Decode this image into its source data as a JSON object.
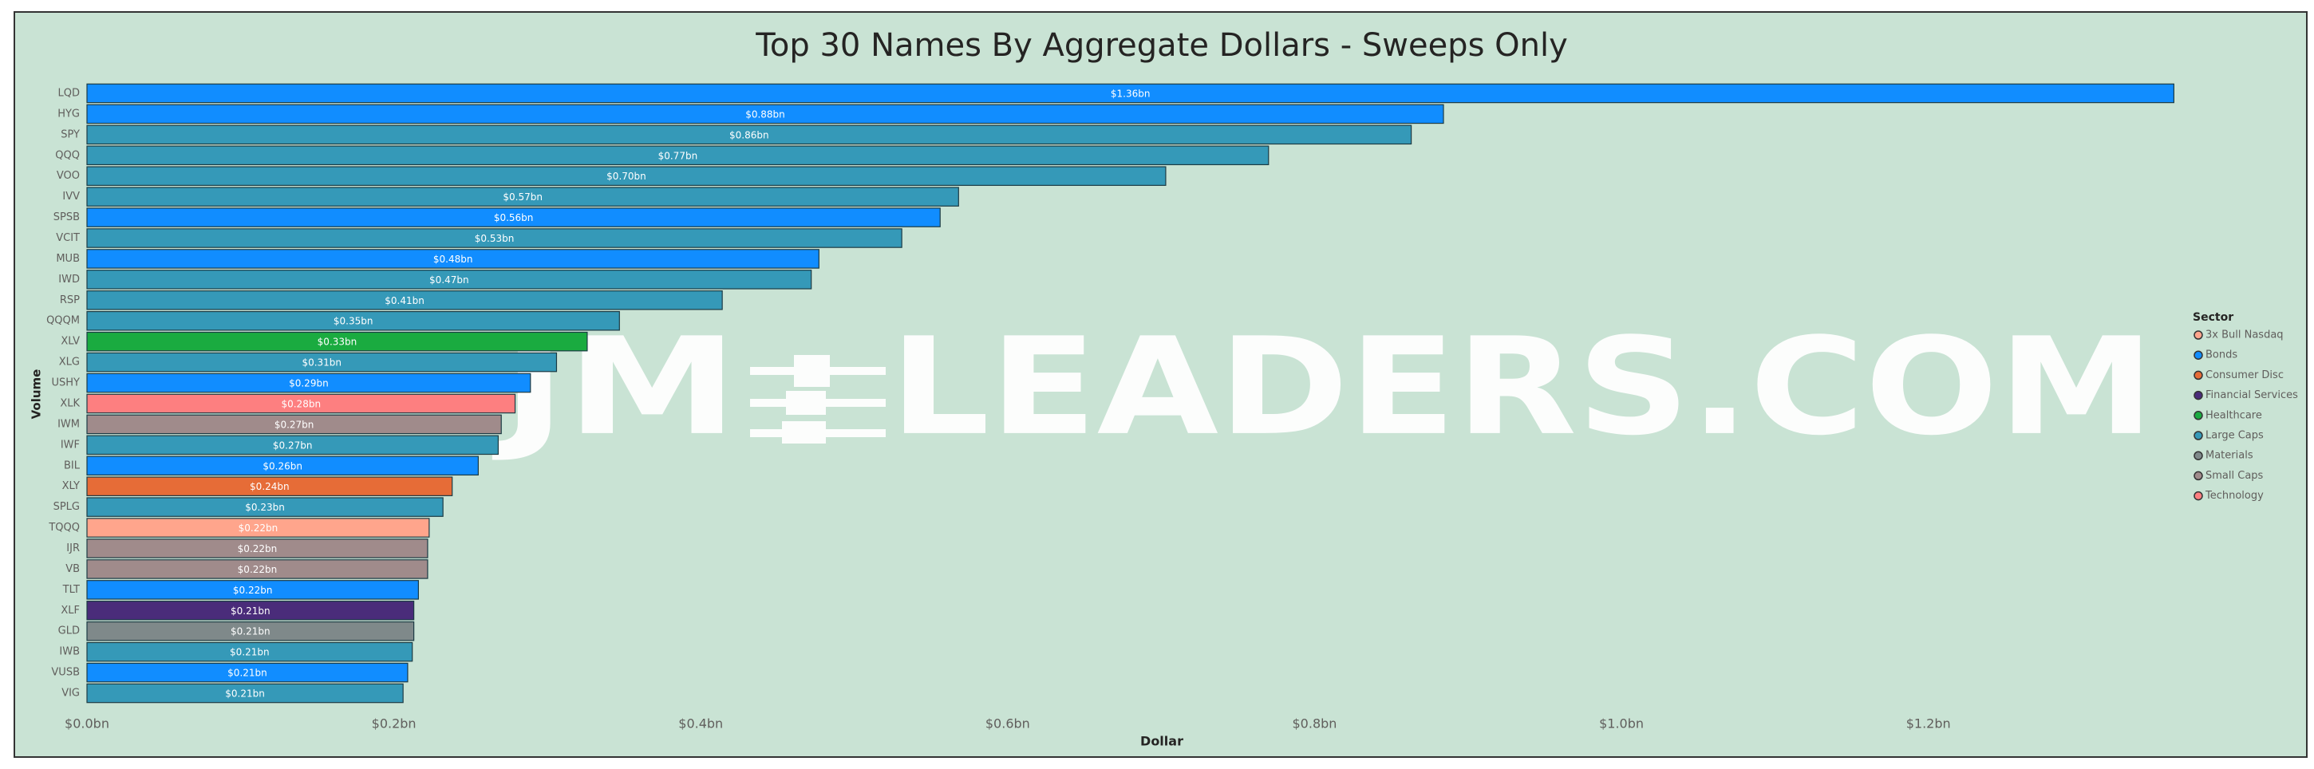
{
  "chart_data": {
    "type": "bar",
    "orientation": "horizontal",
    "title": "Top 30 Names By Aggregate Dollars - Sweeps Only",
    "xlabel": "Dollar",
    "ylabel": "Volume",
    "watermark": [
      "JM",
      "LEADERS.COM"
    ],
    "categories": [
      "LQD",
      "HYG",
      "SPY",
      "QQQ",
      "VOO",
      "IVV",
      "SPSB",
      "VCIT",
      "MUB",
      "IWD",
      "RSP",
      "QQQM",
      "XLV",
      "XLG",
      "USHY",
      "XLK",
      "IWM",
      "IWF",
      "BIL",
      "XLY",
      "SPLG",
      "TQQQ",
      "IJR",
      "VB",
      "TLT",
      "XLF",
      "GLD",
      "IWB",
      "VUSB",
      "VIG"
    ],
    "values": [
      1.36,
      0.884,
      0.863,
      0.77,
      0.703,
      0.568,
      0.556,
      0.531,
      0.477,
      0.472,
      0.414,
      0.347,
      0.326,
      0.306,
      0.289,
      0.279,
      0.27,
      0.268,
      0.255,
      0.238,
      0.232,
      0.223,
      0.222,
      0.222,
      0.216,
      0.213,
      0.213,
      0.212,
      0.209,
      0.206
    ],
    "value_labels": [
      "$1.36bn",
      "$0.88bn",
      "$0.86bn",
      "$0.77bn",
      "$0.70bn",
      "$0.57bn",
      "$0.56bn",
      "$0.53bn",
      "$0.48bn",
      "$0.47bn",
      "$0.41bn",
      "$0.35bn",
      "$0.33bn",
      "$0.31bn",
      "$0.29bn",
      "$0.28bn",
      "$0.27bn",
      "$0.27bn",
      "$0.26bn",
      "$0.24bn",
      "$0.23bn",
      "$0.22bn",
      "$0.22bn",
      "$0.22bn",
      "$0.22bn",
      "$0.21bn",
      "$0.21bn",
      "$0.21bn",
      "$0.21bn",
      "$0.21bn"
    ],
    "colors": [
      "#118dff",
      "#118dff",
      "#3599b8",
      "#3599b8",
      "#3599b8",
      "#3599b8",
      "#118dff",
      "#3599b8",
      "#118dff",
      "#3599b8",
      "#3599b8",
      "#3599b8",
      "#1aab40",
      "#3599b8",
      "#118dff",
      "#fd7f80",
      "#a08b8b",
      "#3599b8",
      "#118dff",
      "#e66c37",
      "#3599b8",
      "#ffa58c",
      "#a08b8b",
      "#a08b8b",
      "#118dff",
      "#4a2c7a",
      "#7f898a",
      "#3599b8",
      "#118dff",
      "#3599b8"
    ],
    "xlim": [
      0,
      1.365
    ],
    "xticks": [
      {
        "value": 0,
        "label": "$0.0bn"
      },
      {
        "value": 0.2,
        "label": "$0.2bn"
      },
      {
        "value": 0.4,
        "label": "$0.4bn"
      },
      {
        "value": 0.6,
        "label": "$0.6bn"
      },
      {
        "value": 0.8,
        "label": "$0.8bn"
      },
      {
        "value": 1.0,
        "label": "$1.0bn"
      },
      {
        "value": 1.2,
        "label": "$1.2bn"
      }
    ],
    "grid": false,
    "legend": {
      "title": "Sector",
      "position": "right",
      "items": [
        {
          "name": "3x Bull Nasdaq",
          "color": "#ffa58c"
        },
        {
          "name": "Bonds",
          "color": "#118dff"
        },
        {
          "name": "Consumer Disc",
          "color": "#e66c37"
        },
        {
          "name": "Financial Services",
          "color": "#4a2c7a"
        },
        {
          "name": "Healthcare",
          "color": "#1aab40"
        },
        {
          "name": "Large Caps",
          "color": "#3599b8"
        },
        {
          "name": "Materials",
          "color": "#7f898a"
        },
        {
          "name": "Small Caps",
          "color": "#a08b8b"
        },
        {
          "name": "Technology",
          "color": "#fd7f80"
        }
      ]
    }
  }
}
